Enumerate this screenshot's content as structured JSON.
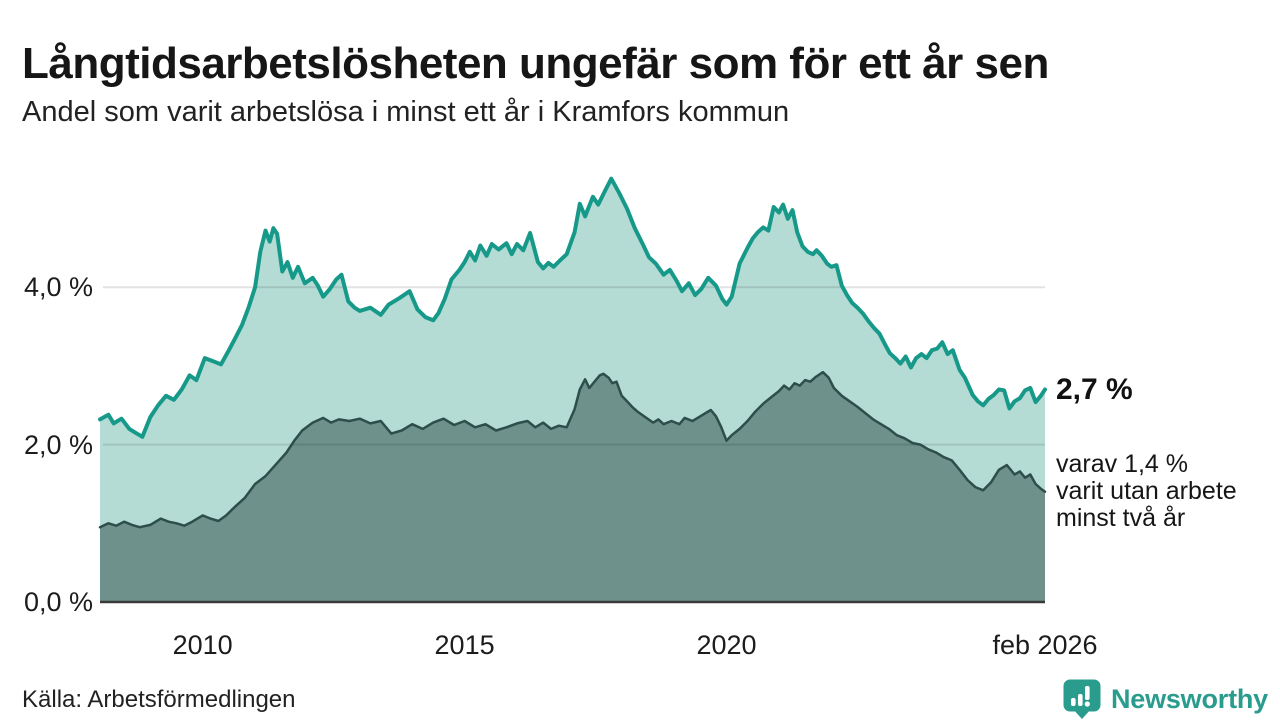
{
  "header": {
    "title": "Långtidsarbetslösheten ungefär som för ett år sen",
    "subtitle": "Andel som varit arbetslösa i minst ett år i Kramfors kommun"
  },
  "chart_data": {
    "type": "area",
    "variant": "overlapping-areas-with-line",
    "title": "Långtidsarbetslösheten ungefär som för ett år sen",
    "subtitle": "Andel som varit arbetslösa i minst ett år i Kramfors kommun",
    "unit": "%",
    "x_range": [
      2008.04,
      2026.08
    ],
    "ylim": [
      0,
      5.49
    ],
    "grid": "horizontal-only",
    "legend_position": "none",
    "x_axis": {
      "ticks": [
        {
          "label": "2010",
          "year": 2010.0
        },
        {
          "label": "2015",
          "year": 2015.0
        },
        {
          "label": "2020",
          "year": 2020.0
        },
        {
          "label": "feb 2026",
          "year": 2026.08
        }
      ]
    },
    "y_axis": {
      "ticks": [
        {
          "label": "0,0 %",
          "value": 0
        },
        {
          "label": "2,0 %",
          "value": 2
        },
        {
          "label": "4,0 %",
          "value": 4
        }
      ]
    },
    "series": [
      {
        "name": "Andel arbetslösa minst ett år",
        "line_color": "#17998a",
        "fill_color": "#b4dcd5",
        "line_width": 4,
        "points": [
          [
            2008.04,
            2.32
          ],
          [
            2008.2,
            2.38
          ],
          [
            2008.3,
            2.27
          ],
          [
            2008.45,
            2.33
          ],
          [
            2008.6,
            2.2
          ],
          [
            2008.72,
            2.15
          ],
          [
            2008.85,
            2.1
          ],
          [
            2009.0,
            2.35
          ],
          [
            2009.15,
            2.5
          ],
          [
            2009.3,
            2.62
          ],
          [
            2009.45,
            2.57
          ],
          [
            2009.6,
            2.7
          ],
          [
            2009.75,
            2.88
          ],
          [
            2009.88,
            2.82
          ],
          [
            2010.04,
            3.1
          ],
          [
            2010.2,
            3.06
          ],
          [
            2010.35,
            3.02
          ],
          [
            2010.5,
            3.2
          ],
          [
            2010.62,
            3.35
          ],
          [
            2010.75,
            3.52
          ],
          [
            2010.88,
            3.75
          ],
          [
            2011.0,
            4.0
          ],
          [
            2011.1,
            4.45
          ],
          [
            2011.2,
            4.72
          ],
          [
            2011.28,
            4.58
          ],
          [
            2011.35,
            4.75
          ],
          [
            2011.42,
            4.68
          ],
          [
            2011.52,
            4.2
          ],
          [
            2011.62,
            4.32
          ],
          [
            2011.72,
            4.12
          ],
          [
            2011.82,
            4.26
          ],
          [
            2011.95,
            4.05
          ],
          [
            2012.1,
            4.12
          ],
          [
            2012.2,
            4.02
          ],
          [
            2012.3,
            3.88
          ],
          [
            2012.42,
            3.97
          ],
          [
            2012.55,
            4.1
          ],
          [
            2012.65,
            4.16
          ],
          [
            2012.78,
            3.82
          ],
          [
            2012.9,
            3.74
          ],
          [
            2013.0,
            3.7
          ],
          [
            2013.2,
            3.74
          ],
          [
            2013.4,
            3.65
          ],
          [
            2013.55,
            3.78
          ],
          [
            2013.75,
            3.86
          ],
          [
            2013.95,
            3.95
          ],
          [
            2014.1,
            3.72
          ],
          [
            2014.25,
            3.62
          ],
          [
            2014.4,
            3.58
          ],
          [
            2014.5,
            3.67
          ],
          [
            2014.62,
            3.85
          ],
          [
            2014.75,
            4.1
          ],
          [
            2014.9,
            4.22
          ],
          [
            2015.0,
            4.32
          ],
          [
            2015.1,
            4.45
          ],
          [
            2015.2,
            4.34
          ],
          [
            2015.3,
            4.53
          ],
          [
            2015.42,
            4.4
          ],
          [
            2015.52,
            4.55
          ],
          [
            2015.65,
            4.48
          ],
          [
            2015.8,
            4.56
          ],
          [
            2015.9,
            4.42
          ],
          [
            2016.0,
            4.55
          ],
          [
            2016.12,
            4.47
          ],
          [
            2016.25,
            4.69
          ],
          [
            2016.4,
            4.32
          ],
          [
            2016.5,
            4.24
          ],
          [
            2016.6,
            4.31
          ],
          [
            2016.7,
            4.26
          ],
          [
            2016.82,
            4.34
          ],
          [
            2016.95,
            4.42
          ],
          [
            2017.1,
            4.7
          ],
          [
            2017.2,
            5.06
          ],
          [
            2017.3,
            4.9
          ],
          [
            2017.45,
            5.15
          ],
          [
            2017.55,
            5.05
          ],
          [
            2017.7,
            5.25
          ],
          [
            2017.8,
            5.38
          ],
          [
            2017.95,
            5.2
          ],
          [
            2018.1,
            5.0
          ],
          [
            2018.25,
            4.75
          ],
          [
            2018.4,
            4.55
          ],
          [
            2018.52,
            4.38
          ],
          [
            2018.65,
            4.3
          ],
          [
            2018.8,
            4.16
          ],
          [
            2018.92,
            4.22
          ],
          [
            2019.05,
            4.08
          ],
          [
            2019.15,
            3.95
          ],
          [
            2019.28,
            4.05
          ],
          [
            2019.4,
            3.9
          ],
          [
            2019.52,
            3.98
          ],
          [
            2019.65,
            4.12
          ],
          [
            2019.8,
            4.02
          ],
          [
            2019.92,
            3.85
          ],
          [
            2020.0,
            3.78
          ],
          [
            2020.1,
            3.88
          ],
          [
            2020.25,
            4.3
          ],
          [
            2020.4,
            4.5
          ],
          [
            2020.5,
            4.62
          ],
          [
            2020.6,
            4.7
          ],
          [
            2020.7,
            4.76
          ],
          [
            2020.8,
            4.72
          ],
          [
            2020.9,
            5.02
          ],
          [
            2021.0,
            4.95
          ],
          [
            2021.08,
            5.05
          ],
          [
            2021.17,
            4.87
          ],
          [
            2021.26,
            4.98
          ],
          [
            2021.35,
            4.7
          ],
          [
            2021.45,
            4.52
          ],
          [
            2021.55,
            4.45
          ],
          [
            2021.65,
            4.42
          ],
          [
            2021.72,
            4.47
          ],
          [
            2021.82,
            4.4
          ],
          [
            2021.92,
            4.3
          ],
          [
            2022.0,
            4.26
          ],
          [
            2022.1,
            4.28
          ],
          [
            2022.2,
            4.02
          ],
          [
            2022.3,
            3.9
          ],
          [
            2022.4,
            3.8
          ],
          [
            2022.5,
            3.74
          ],
          [
            2022.6,
            3.67
          ],
          [
            2022.72,
            3.56
          ],
          [
            2022.82,
            3.48
          ],
          [
            2022.92,
            3.41
          ],
          [
            2023.02,
            3.28
          ],
          [
            2023.12,
            3.16
          ],
          [
            2023.22,
            3.1
          ],
          [
            2023.32,
            3.03
          ],
          [
            2023.42,
            3.12
          ],
          [
            2023.52,
            2.98
          ],
          [
            2023.62,
            3.1
          ],
          [
            2023.72,
            3.15
          ],
          [
            2023.82,
            3.1
          ],
          [
            2023.92,
            3.2
          ],
          [
            2024.02,
            3.22
          ],
          [
            2024.12,
            3.3
          ],
          [
            2024.22,
            3.15
          ],
          [
            2024.32,
            3.2
          ],
          [
            2024.45,
            2.95
          ],
          [
            2024.55,
            2.85
          ],
          [
            2024.7,
            2.63
          ],
          [
            2024.8,
            2.55
          ],
          [
            2024.9,
            2.5
          ],
          [
            2025.0,
            2.58
          ],
          [
            2025.1,
            2.63
          ],
          [
            2025.2,
            2.7
          ],
          [
            2025.3,
            2.69
          ],
          [
            2025.4,
            2.46
          ],
          [
            2025.5,
            2.55
          ],
          [
            2025.6,
            2.59
          ],
          [
            2025.7,
            2.69
          ],
          [
            2025.8,
            2.72
          ],
          [
            2025.9,
            2.54
          ],
          [
            2026.0,
            2.62
          ],
          [
            2026.08,
            2.7
          ]
        ]
      },
      {
        "name": "varav utan arbete minst två år",
        "line_color": "#2e4e4a",
        "fill_color": "#6e918c",
        "line_width": 2.5,
        "points": [
          [
            2008.04,
            0.95
          ],
          [
            2008.2,
            1.0
          ],
          [
            2008.35,
            0.97
          ],
          [
            2008.5,
            1.02
          ],
          [
            2008.65,
            0.98
          ],
          [
            2008.8,
            0.95
          ],
          [
            2009.0,
            0.98
          ],
          [
            2009.2,
            1.06
          ],
          [
            2009.35,
            1.02
          ],
          [
            2009.5,
            1.0
          ],
          [
            2009.65,
            0.97
          ],
          [
            2009.8,
            1.02
          ],
          [
            2010.0,
            1.1
          ],
          [
            2010.15,
            1.06
          ],
          [
            2010.3,
            1.03
          ],
          [
            2010.45,
            1.1
          ],
          [
            2010.6,
            1.2
          ],
          [
            2010.8,
            1.32
          ],
          [
            2011.0,
            1.5
          ],
          [
            2011.2,
            1.6
          ],
          [
            2011.4,
            1.75
          ],
          [
            2011.6,
            1.9
          ],
          [
            2011.75,
            2.05
          ],
          [
            2011.9,
            2.18
          ],
          [
            2012.1,
            2.28
          ],
          [
            2012.3,
            2.34
          ],
          [
            2012.45,
            2.28
          ],
          [
            2012.6,
            2.32
          ],
          [
            2012.8,
            2.3
          ],
          [
            2013.0,
            2.33
          ],
          [
            2013.2,
            2.27
          ],
          [
            2013.4,
            2.3
          ],
          [
            2013.6,
            2.14
          ],
          [
            2013.8,
            2.18
          ],
          [
            2014.0,
            2.26
          ],
          [
            2014.2,
            2.2
          ],
          [
            2014.4,
            2.28
          ],
          [
            2014.6,
            2.33
          ],
          [
            2014.8,
            2.25
          ],
          [
            2015.0,
            2.3
          ],
          [
            2015.2,
            2.22
          ],
          [
            2015.4,
            2.26
          ],
          [
            2015.6,
            2.18
          ],
          [
            2015.8,
            2.22
          ],
          [
            2016.0,
            2.27
          ],
          [
            2016.2,
            2.3
          ],
          [
            2016.35,
            2.22
          ],
          [
            2016.5,
            2.28
          ],
          [
            2016.65,
            2.2
          ],
          [
            2016.8,
            2.24
          ],
          [
            2016.95,
            2.22
          ],
          [
            2017.1,
            2.45
          ],
          [
            2017.2,
            2.7
          ],
          [
            2017.3,
            2.83
          ],
          [
            2017.38,
            2.72
          ],
          [
            2017.48,
            2.8
          ],
          [
            2017.58,
            2.88
          ],
          [
            2017.65,
            2.9
          ],
          [
            2017.75,
            2.85
          ],
          [
            2017.82,
            2.78
          ],
          [
            2017.9,
            2.8
          ],
          [
            2018.0,
            2.62
          ],
          [
            2018.1,
            2.55
          ],
          [
            2018.2,
            2.48
          ],
          [
            2018.3,
            2.42
          ],
          [
            2018.45,
            2.35
          ],
          [
            2018.6,
            2.28
          ],
          [
            2018.7,
            2.32
          ],
          [
            2018.8,
            2.26
          ],
          [
            2018.95,
            2.3
          ],
          [
            2019.1,
            2.26
          ],
          [
            2019.2,
            2.34
          ],
          [
            2019.35,
            2.3
          ],
          [
            2019.5,
            2.36
          ],
          [
            2019.6,
            2.4
          ],
          [
            2019.7,
            2.44
          ],
          [
            2019.8,
            2.36
          ],
          [
            2019.9,
            2.22
          ],
          [
            2020.0,
            2.05
          ],
          [
            2020.1,
            2.12
          ],
          [
            2020.25,
            2.2
          ],
          [
            2020.4,
            2.3
          ],
          [
            2020.55,
            2.42
          ],
          [
            2020.7,
            2.52
          ],
          [
            2020.85,
            2.6
          ],
          [
            2021.0,
            2.68
          ],
          [
            2021.1,
            2.75
          ],
          [
            2021.2,
            2.7
          ],
          [
            2021.3,
            2.78
          ],
          [
            2021.4,
            2.75
          ],
          [
            2021.5,
            2.82
          ],
          [
            2021.6,
            2.8
          ],
          [
            2021.7,
            2.86
          ],
          [
            2021.84,
            2.92
          ],
          [
            2021.95,
            2.85
          ],
          [
            2022.05,
            2.72
          ],
          [
            2022.2,
            2.62
          ],
          [
            2022.35,
            2.55
          ],
          [
            2022.5,
            2.48
          ],
          [
            2022.65,
            2.4
          ],
          [
            2022.8,
            2.32
          ],
          [
            2022.95,
            2.26
          ],
          [
            2023.1,
            2.2
          ],
          [
            2023.25,
            2.12
          ],
          [
            2023.4,
            2.08
          ],
          [
            2023.55,
            2.02
          ],
          [
            2023.7,
            2.0
          ],
          [
            2023.85,
            1.94
          ],
          [
            2024.0,
            1.9
          ],
          [
            2024.15,
            1.84
          ],
          [
            2024.3,
            1.8
          ],
          [
            2024.45,
            1.68
          ],
          [
            2024.6,
            1.55
          ],
          [
            2024.75,
            1.46
          ],
          [
            2024.9,
            1.42
          ],
          [
            2025.05,
            1.52
          ],
          [
            2025.2,
            1.68
          ],
          [
            2025.35,
            1.74
          ],
          [
            2025.5,
            1.62
          ],
          [
            2025.6,
            1.66
          ],
          [
            2025.7,
            1.58
          ],
          [
            2025.8,
            1.62
          ],
          [
            2025.9,
            1.5
          ],
          [
            2026.0,
            1.44
          ],
          [
            2026.08,
            1.4
          ]
        ]
      }
    ],
    "annotations": {
      "end_value_label": "2,7 %",
      "note": "varav 1,4 %\nvarit utan arbete\nminst två år"
    },
    "colors": {
      "gridline": "rgba(0,0,0,0.11)",
      "baseline": "#3a3a3a",
      "text": "#1a1a1a"
    }
  },
  "footer": {
    "source": "Källa: Arbetsförmedlingen",
    "brand": "Newsworthy",
    "brand_color": "#2a9c8d"
  },
  "icons": {
    "newsworthy-logo-icon": "speech-bubble-with-bar-chart-and-exclamation"
  }
}
